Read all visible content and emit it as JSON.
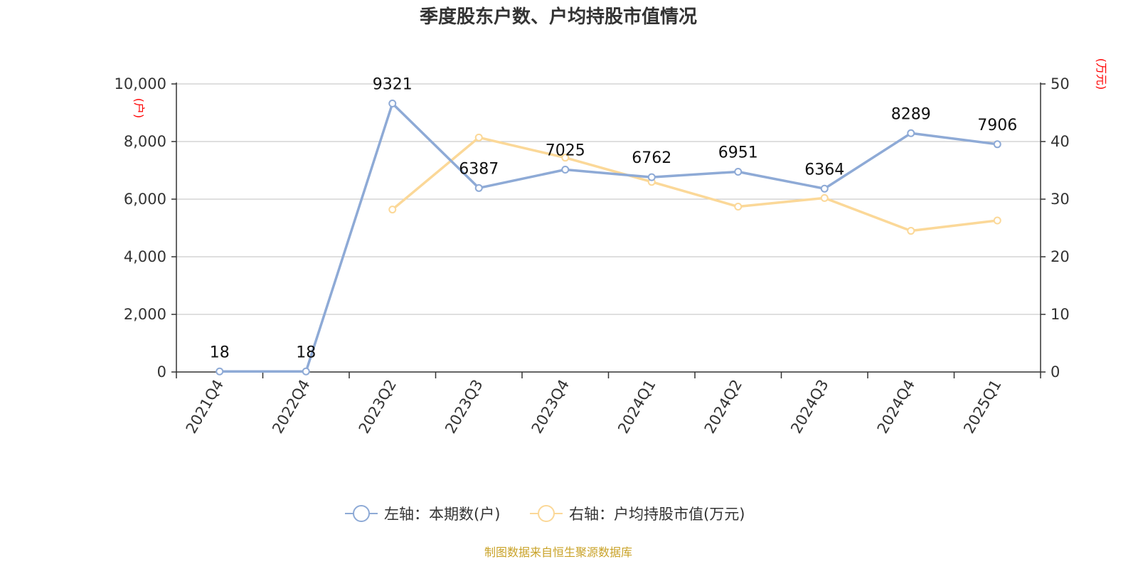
{
  "chart_data": {
    "type": "line",
    "title": "季度股东户数、户均持股市值情况",
    "categories": [
      "2021Q4",
      "2022Q4",
      "2023Q2",
      "2023Q3",
      "2023Q4",
      "2024Q1",
      "2024Q2",
      "2024Q3",
      "2024Q4",
      "2025Q1"
    ],
    "left_axis": {
      "unit": "(户)",
      "range": [
        0,
        10000
      ],
      "ticks": [
        "0",
        "2,000",
        "4,000",
        "6,000",
        "8,000",
        "10,000"
      ]
    },
    "right_axis": {
      "unit": "(万元)",
      "range": [
        0,
        50
      ],
      "ticks": [
        "0",
        "10",
        "20",
        "30",
        "40",
        "50"
      ]
    },
    "series": [
      {
        "name": "左轴：本期数(户)",
        "axis": "left",
        "color": "#8eaad6",
        "values": [
          18,
          18,
          9321,
          6387,
          7025,
          6762,
          6951,
          6364,
          8289,
          7906
        ],
        "labels": [
          "18",
          "18",
          "9321",
          "6387",
          "7025",
          "6762",
          "6951",
          "6364",
          "8289",
          "7906"
        ]
      },
      {
        "name": "右轴：户均持股市值(万元)",
        "axis": "right",
        "color": "#fbd898",
        "values": [
          null,
          null,
          28.2,
          40.7,
          37.2,
          33.0,
          28.7,
          30.2,
          24.5,
          26.3
        ]
      }
    ],
    "grid": true,
    "legend_position": "bottom"
  },
  "source_note": "制图数据来自恒生聚源数据库"
}
